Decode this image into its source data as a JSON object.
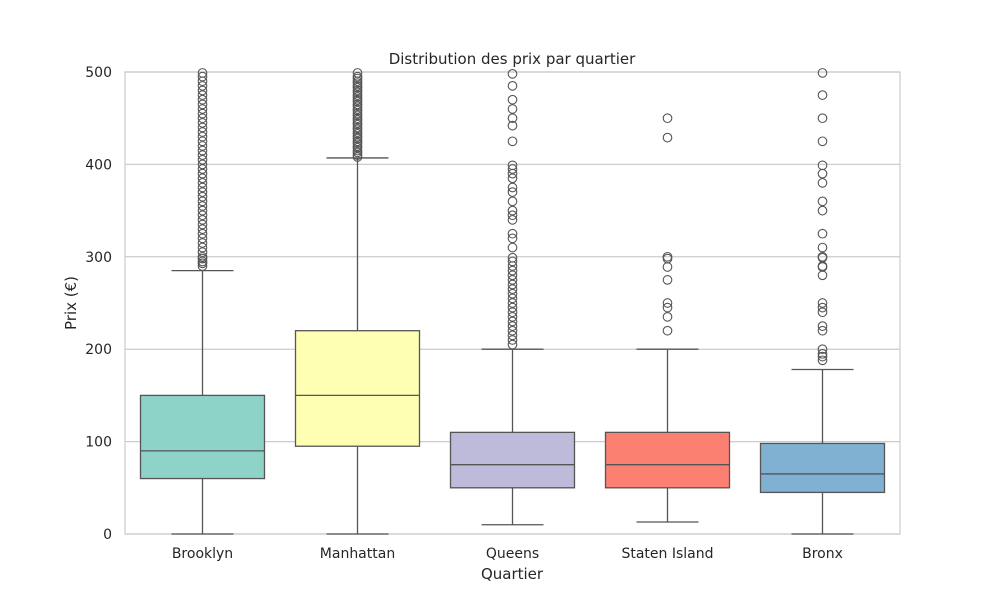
{
  "chart_data": {
    "type": "boxplot",
    "title": "Distribution des prix par quartier",
    "xlabel": "Quartier",
    "ylabel": "Prix (€)",
    "ylim": [
      0,
      500
    ],
    "yticks": [
      0,
      100,
      200,
      300,
      400,
      500
    ],
    "grid": true,
    "categories": [
      "Brooklyn",
      "Manhattan",
      "Queens",
      "Staten Island",
      "Bronx"
    ],
    "colors": [
      "#8dd3c7",
      "#ffffb3",
      "#bebada",
      "#fb8072",
      "#80b1d3"
    ],
    "boxes": [
      {
        "q1": 60,
        "median": 90,
        "q3": 150,
        "whisker_low": 0,
        "whisker_high": 285,
        "outliers": [
          290,
          293,
          295,
          298,
          300,
          305,
          310,
          315,
          320,
          325,
          330,
          335,
          340,
          345,
          350,
          355,
          360,
          365,
          370,
          375,
          380,
          385,
          390,
          395,
          400,
          405,
          410,
          415,
          420,
          425,
          430,
          435,
          440,
          445,
          450,
          455,
          460,
          465,
          470,
          475,
          480,
          485,
          490,
          495,
          499
        ]
      },
      {
        "q1": 95,
        "median": 150,
        "q3": 220,
        "whisker_low": 0,
        "whisker_high": 407,
        "outliers": [
          408,
          410,
          413,
          415,
          418,
          420,
          423,
          425,
          428,
          430,
          433,
          435,
          438,
          440,
          443,
          445,
          448,
          450,
          453,
          455,
          458,
          460,
          463,
          465,
          468,
          470,
          473,
          475,
          478,
          480,
          483,
          485,
          488,
          490,
          493,
          495,
          499
        ]
      },
      {
        "q1": 50,
        "median": 75,
        "q3": 110,
        "whisker_low": 10,
        "whisker_high": 200,
        "outliers": [
          205,
          210,
          215,
          220,
          225,
          230,
          235,
          240,
          245,
          250,
          255,
          260,
          265,
          270,
          275,
          280,
          285,
          290,
          295,
          299,
          310,
          320,
          325,
          340,
          345,
          350,
          360,
          370,
          375,
          385,
          390,
          395,
          399,
          425,
          442,
          450,
          460,
          470,
          485,
          498
        ]
      },
      {
        "q1": 50,
        "median": 75,
        "q3": 110,
        "whisker_low": 13,
        "whisker_high": 200,
        "outliers": [
          220,
          235,
          245,
          250,
          275,
          289,
          298,
          300,
          429,
          450
        ]
      },
      {
        "q1": 45,
        "median": 65,
        "q3": 98,
        "whisker_low": 0,
        "whisker_high": 178,
        "outliers": [
          188,
          192,
          195,
          200,
          220,
          225,
          240,
          245,
          250,
          280,
          289,
          290,
          299,
          300,
          310,
          325,
          350,
          360,
          380,
          390,
          399,
          425,
          450,
          475,
          499
        ]
      }
    ]
  }
}
